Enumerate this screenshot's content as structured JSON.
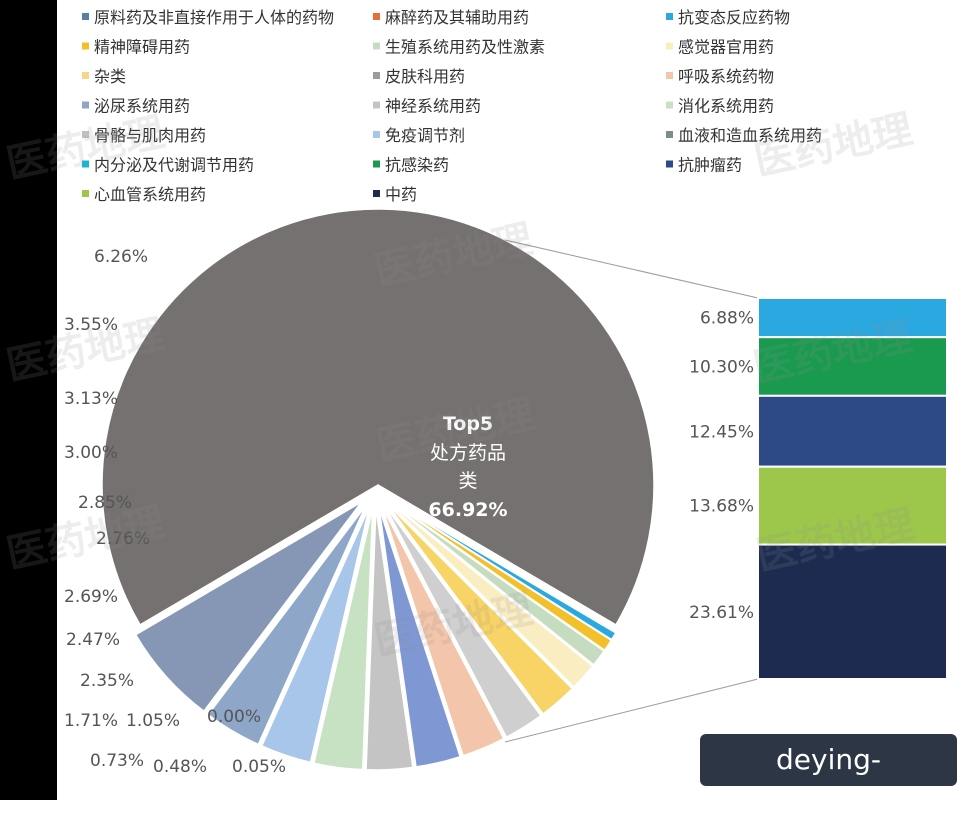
{
  "chart_data": {
    "type": "pie",
    "legend": [
      {
        "name": "原料药及非直接作用于人体的药物",
        "color": "#5b7ea8"
      },
      {
        "name": "麻醉药及其辅助用药",
        "color": "#e56f36"
      },
      {
        "name": "抗变态反应药物",
        "color": "#2aa9e0"
      },
      {
        "name": "精神障碍用药",
        "color": "#f2c02a"
      },
      {
        "name": "生殖系统用药及性激素",
        "color": "#c6dcc0"
      },
      {
        "name": "感觉器官用药",
        "color": "#fbedc2"
      },
      {
        "name": "杂类",
        "color": "#f8d58a"
      },
      {
        "name": "皮肤科用药",
        "color": "#9c9c9c"
      },
      {
        "name": "呼吸系统药物",
        "color": "#f3c5aa"
      },
      {
        "name": "泌尿系统用药",
        "color": "#8ea7c9"
      },
      {
        "name": "神经系统用药",
        "color": "#c4c4c4"
      },
      {
        "name": "消化系统用药",
        "color": "#c7e2c3"
      },
      {
        "name": "骨骼与肌肉用药",
        "color": "#bfbfbf"
      },
      {
        "name": "免疫调节剂",
        "color": "#a8c5ea"
      },
      {
        "name": "血液和造血系统用药",
        "color": "#7f8c8d"
      },
      {
        "name": "内分泌及代谢调节用药",
        "color": "#18b6d6"
      },
      {
        "name": "抗感染药",
        "color": "#1a9a4f"
      },
      {
        "name": "抗肿瘤药",
        "color": "#2e4a86"
      },
      {
        "name": "心血管系统用药",
        "color": "#9dc74a"
      },
      {
        "name": "中药",
        "color": "#1c2b4f"
      }
    ],
    "pie_slices": [
      {
        "label": "6.26%",
        "value": 6.26,
        "color": "#8597b5"
      },
      {
        "label": "3.55%",
        "value": 3.55,
        "color": "#8ea7c9"
      },
      {
        "label": "3.13%",
        "value": 3.13,
        "color": "#a8c5ea"
      },
      {
        "label": "3.00%",
        "value": 3.0,
        "color": "#c7e2c3"
      },
      {
        "label": "2.85%",
        "value": 2.85,
        "color": "#c4c4c4"
      },
      {
        "label": "2.76%",
        "value": 2.76,
        "color": "#7f98d3"
      },
      {
        "label": "2.69%",
        "value": 2.69,
        "color": "#f3c5aa"
      },
      {
        "label": "2.47%",
        "value": 2.47,
        "color": "#cfcfcf"
      },
      {
        "label": "2.35%",
        "value": 2.35,
        "color": "#f8d366"
      },
      {
        "label": "1.71%",
        "value": 1.71,
        "color": "#fbedc2"
      },
      {
        "label": "1.05%",
        "value": 1.05,
        "color": "#c6dcc0"
      },
      {
        "label": "0.73%",
        "value": 0.73,
        "color": "#f2c02a"
      },
      {
        "label": "0.48%",
        "value": 0.48,
        "color": "#2aa9e0"
      },
      {
        "label": "0.05%",
        "value": 0.05,
        "color": "#e56f36"
      },
      {
        "label": "0.00%",
        "value": 0.0,
        "color": "#5b7ea8"
      },
      {
        "label": "66.92%",
        "value": 66.92,
        "color": "#767171",
        "exploded": true
      }
    ],
    "center_label": {
      "line1": "Top5",
      "line2": "处方药品",
      "line3": "类",
      "value": "66.92%"
    },
    "breakdown_bar": [
      {
        "label": "6.88%",
        "value": 6.88,
        "color": "#2aa9e0"
      },
      {
        "label": "10.30%",
        "value": 10.3,
        "color": "#1a9a4f"
      },
      {
        "label": "12.45%",
        "value": 12.45,
        "color": "#2e4a86"
      },
      {
        "label": "13.68%",
        "value": 13.68,
        "color": "#9dc74a"
      },
      {
        "label": "23.61%",
        "value": 23.61,
        "color": "#1c2b4f"
      }
    ]
  },
  "watermark_text": "医药地理",
  "badge_text": "deying-install.com"
}
